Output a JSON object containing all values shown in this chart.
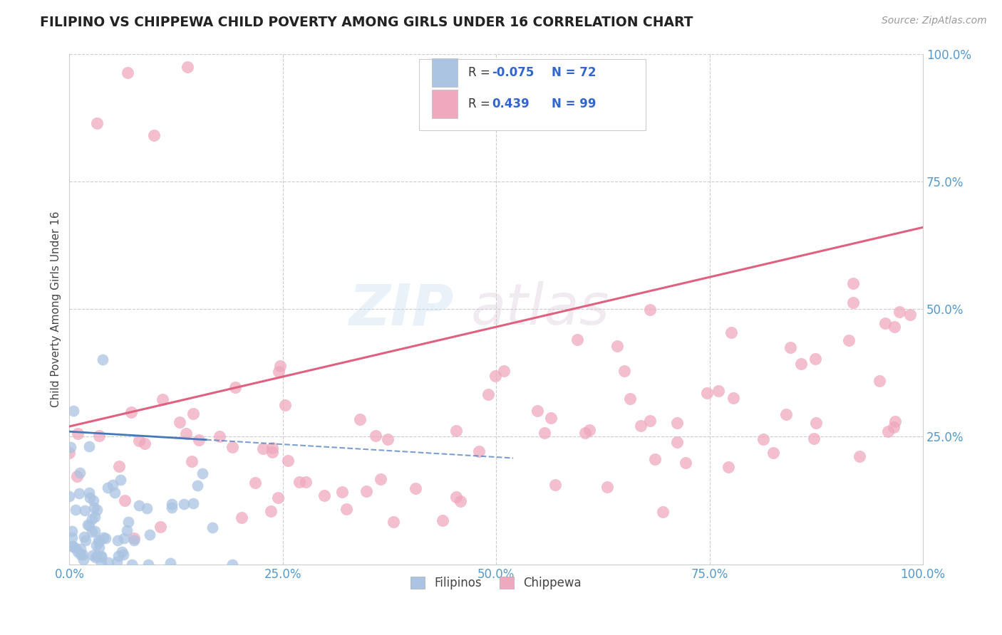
{
  "title": "FILIPINO VS CHIPPEWA CHILD POVERTY AMONG GIRLS UNDER 16 CORRELATION CHART",
  "source": "Source: ZipAtlas.com",
  "ylabel": "Child Poverty Among Girls Under 16",
  "xlim": [
    0,
    1
  ],
  "ylim": [
    0,
    1
  ],
  "xticks": [
    0.0,
    0.25,
    0.5,
    0.75,
    1.0
  ],
  "yticks": [
    0.0,
    0.25,
    0.5,
    0.75,
    1.0
  ],
  "xticklabels": [
    "0.0%",
    "25.0%",
    "50.0%",
    "75.0%",
    "100.0%"
  ],
  "yticklabels": [
    "",
    "25.0%",
    "50.0%",
    "75.0%",
    "100.0%"
  ],
  "filipino_R": -0.075,
  "filipino_N": 72,
  "chippewa_R": 0.439,
  "chippewa_N": 99,
  "filipino_color": "#aac4e2",
  "chippewa_color": "#f0a8be",
  "filipino_line_color": "#4477bb",
  "chippewa_line_color": "#e06080",
  "watermark_zip": "ZIP",
  "watermark_atlas": "atlas",
  "background_color": "#ffffff",
  "grid_color": "#cccccc",
  "tick_color": "#5599cc",
  "title_color": "#222222",
  "source_color": "#999999",
  "legend_text_color": "#333333",
  "legend_value_color": "#3366cc"
}
